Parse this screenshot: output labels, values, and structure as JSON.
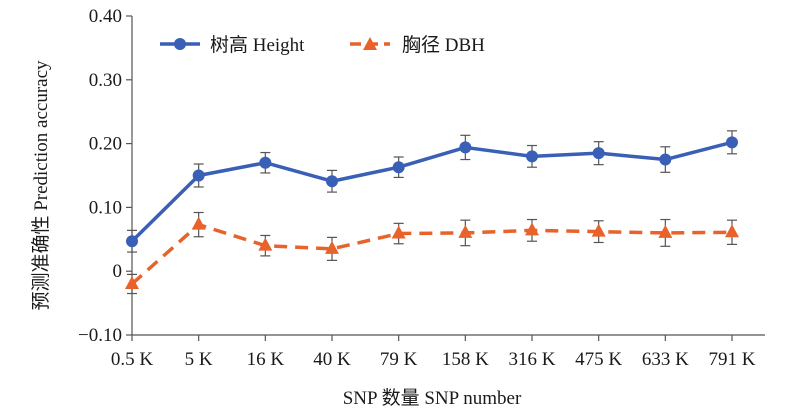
{
  "chart_data": {
    "type": "line",
    "title": "",
    "xlabel": "SNP 数量 SNP number",
    "ylabel": "预测准确性 Prediction accuracy",
    "categories": [
      "0.5 K",
      "5 K",
      "16 K",
      "40 K",
      "79 K",
      "158 K",
      "316 K",
      "475 K",
      "633 K",
      "791 K"
    ],
    "ylim": [
      -0.1,
      0.4
    ],
    "yticks": [
      -0.1,
      0,
      0.1,
      0.2,
      0.3,
      0.4
    ],
    "ytick_labels": [
      "−0.10",
      "0",
      "0.10",
      "0.20",
      "0.30",
      "0.40"
    ],
    "legend_position": "top-left",
    "grid": false,
    "series": [
      {
        "name": "树高 Height",
        "color": "#3a5fb6",
        "line_style": "solid",
        "marker": "circle",
        "values": [
          0.047,
          0.15,
          0.17,
          0.141,
          0.163,
          0.194,
          0.18,
          0.185,
          0.175,
          0.202
        ],
        "errors": [
          0.017,
          0.018,
          0.016,
          0.017,
          0.016,
          0.019,
          0.017,
          0.018,
          0.02,
          0.018
        ]
      },
      {
        "name": "胸径 DBH",
        "color": "#e8622a",
        "line_style": "dashed",
        "marker": "triangle",
        "values": [
          -0.02,
          0.073,
          0.04,
          0.035,
          0.059,
          0.06,
          0.064,
          0.062,
          0.06,
          0.061
        ],
        "errors": [
          0.015,
          0.019,
          0.016,
          0.018,
          0.016,
          0.02,
          0.017,
          0.017,
          0.021,
          0.019
        ]
      }
    ]
  }
}
